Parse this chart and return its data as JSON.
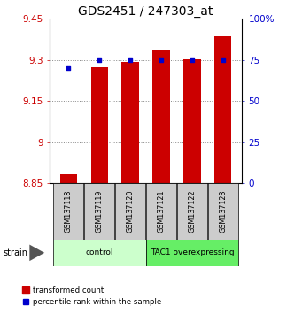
{
  "title": "GDS2451 / 247303_at",
  "samples": [
    "GSM137118",
    "GSM137119",
    "GSM137120",
    "GSM137121",
    "GSM137122",
    "GSM137123"
  ],
  "red_values": [
    8.882,
    9.272,
    9.292,
    9.335,
    9.302,
    9.385
  ],
  "blue_percentiles": [
    70,
    75,
    75,
    75,
    75,
    75
  ],
  "ylim_left": [
    8.85,
    9.45
  ],
  "ylim_right": [
    0,
    100
  ],
  "yticks_left": [
    8.85,
    9.0,
    9.15,
    9.3,
    9.45
  ],
  "yticks_right": [
    0,
    25,
    50,
    75,
    100
  ],
  "ytick_labels_left": [
    "8.85",
    "9",
    "9.15",
    "9.3",
    "9.45"
  ],
  "ytick_labels_right": [
    "0",
    "25",
    "50",
    "75",
    "100%"
  ],
  "groups": [
    {
      "label": "control",
      "indices": [
        0,
        1,
        2
      ],
      "color": "#ccffcc"
    },
    {
      "label": "TAC1 overexpressing",
      "indices": [
        3,
        4,
        5
      ],
      "color": "#66ee66"
    }
  ],
  "bar_color": "#cc0000",
  "dot_color": "#0000cc",
  "bar_width": 0.55,
  "grid_color": "#888888",
  "ylabel_left_color": "#cc0000",
  "ylabel_right_color": "#0000cc",
  "legend_red_label": "transformed count",
  "legend_blue_label": "percentile rank within the sample",
  "strain_label": "strain",
  "sample_box_color": "#cccccc",
  "title_fontsize": 10,
  "tick_fontsize": 7.5,
  "label_fontsize": 7
}
